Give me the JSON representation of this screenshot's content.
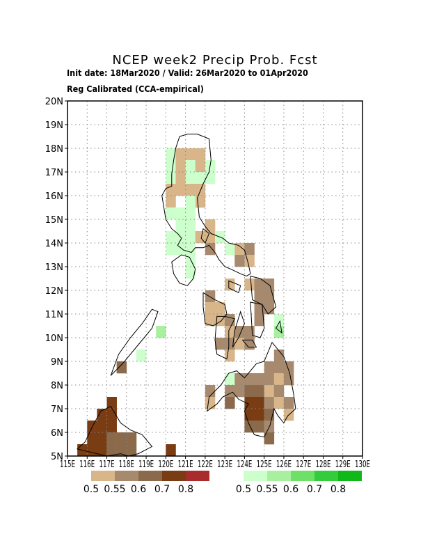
{
  "title": "NCEP week2 Precip Prob. Fcst",
  "subtitle_dates": "Init date: 18Mar2020 / Valid: 26Mar2020 to 01Apr2020",
  "subtitle_method": "Reg Calibrated (CCA-empirical)",
  "map": {
    "lon_range": [
      115,
      130
    ],
    "lat_range": [
      5,
      20
    ],
    "lon_tick_labels": [
      "115E",
      "116E",
      "117E",
      "118E",
      "119E",
      "120E",
      "121E",
      "122E",
      "123E",
      "124E",
      "125E",
      "126E",
      "127E",
      "128E",
      "129E",
      "130E"
    ],
    "lat_tick_labels": [
      "5N",
      "6N",
      "7N",
      "8N",
      "9N",
      "10N",
      "11N",
      "12N",
      "13N",
      "14N",
      "15N",
      "16N",
      "17N",
      "18N",
      "19N",
      "20N"
    ],
    "grid": "dotted",
    "cell_size_deg": 0.5
  },
  "legend": {
    "dry": {
      "colors": [
        "#d8b68a",
        "#a78a6e",
        "#8a6a4a",
        "#7a3c12",
        "#a82c2c"
      ],
      "labels": [
        "0.5",
        "0.55",
        "0.6",
        "0.7",
        "0.8"
      ]
    },
    "wet": {
      "colors": [
        "#ccffcc",
        "#a8f0a0",
        "#6ee068",
        "#34cc3c",
        "#10b81a"
      ],
      "labels": [
        "0.5",
        "0.55",
        "0.6",
        "0.7",
        "0.8"
      ]
    }
  },
  "cells": [
    {
      "lon": 120.25,
      "lat": 17.75,
      "cat": "wet1"
    },
    {
      "lon": 120.25,
      "lat": 17.25,
      "cat": "wet1"
    },
    {
      "lon": 120.25,
      "lat": 16.75,
      "cat": "wet1"
    },
    {
      "lon": 120.25,
      "lat": 16.25,
      "cat": "dry1"
    },
    {
      "lon": 120.25,
      "lat": 15.75,
      "cat": "dry1"
    },
    {
      "lon": 120.75,
      "lat": 17.75,
      "cat": "dry1"
    },
    {
      "lon": 120.75,
      "lat": 17.25,
      "cat": "dry1"
    },
    {
      "lon": 120.75,
      "lat": 16.75,
      "cat": "dry1"
    },
    {
      "lon": 120.75,
      "lat": 16.25,
      "cat": "dry1"
    },
    {
      "lon": 121.25,
      "lat": 17.75,
      "cat": "dry1"
    },
    {
      "lon": 121.25,
      "lat": 17.25,
      "cat": "wet1"
    },
    {
      "lon": 121.25,
      "lat": 16.75,
      "cat": "wet1"
    },
    {
      "lon": 121.25,
      "lat": 16.25,
      "cat": "dry1"
    },
    {
      "lon": 121.75,
      "lat": 17.75,
      "cat": "dry1"
    },
    {
      "lon": 121.75,
      "lat": 17.25,
      "cat": "dry1"
    },
    {
      "lon": 121.75,
      "lat": 16.75,
      "cat": "wet1"
    },
    {
      "lon": 121.75,
      "lat": 16.25,
      "cat": "dry1"
    },
    {
      "lon": 121.75,
      "lat": 15.75,
      "cat": "dry1"
    },
    {
      "lon": 122.25,
      "lat": 17.25,
      "cat": "wet1"
    },
    {
      "lon": 122.25,
      "lat": 16.75,
      "cat": "wet1"
    },
    {
      "lon": 121.25,
      "lat": 15.75,
      "cat": "wet1"
    },
    {
      "lon": 120.25,
      "lat": 15.25,
      "cat": "wet1"
    },
    {
      "lon": 120.75,
      "lat": 15.25,
      "cat": "wet1"
    },
    {
      "lon": 121.25,
      "lat": 15.25,
      "cat": "wet1"
    },
    {
      "lon": 120.75,
      "lat": 14.75,
      "cat": "wet1"
    },
    {
      "lon": 121.25,
      "lat": 14.75,
      "cat": "wet1"
    },
    {
      "lon": 120.25,
      "lat": 14.25,
      "cat": "wet1"
    },
    {
      "lon": 120.75,
      "lat": 14.25,
      "cat": "wet1"
    },
    {
      "lon": 121.25,
      "lat": 14.25,
      "cat": "wet1"
    },
    {
      "lon": 121.75,
      "lat": 14.25,
      "cat": "dry1"
    },
    {
      "lon": 122.25,
      "lat": 14.75,
      "cat": "dry1"
    },
    {
      "lon": 122.25,
      "lat": 14.25,
      "cat": "dry1"
    },
    {
      "lon": 122.75,
      "lat": 14.25,
      "cat": "wet1"
    },
    {
      "lon": 120.25,
      "lat": 13.75,
      "cat": "wet1"
    },
    {
      "lon": 120.75,
      "lat": 13.75,
      "cat": "wet1"
    },
    {
      "lon": 121.25,
      "lat": 13.75,
      "cat": "wet1"
    },
    {
      "lon": 121.25,
      "lat": 13.25,
      "cat": "wet1"
    },
    {
      "lon": 121.25,
      "lat": 12.75,
      "cat": "wet1"
    },
    {
      "lon": 122.25,
      "lat": 13.75,
      "cat": "dry2"
    },
    {
      "lon": 123.25,
      "lat": 13.75,
      "cat": "wet1"
    },
    {
      "lon": 123.75,
      "lat": 13.75,
      "cat": "dry1"
    },
    {
      "lon": 123.75,
      "lat": 13.25,
      "cat": "dry2"
    },
    {
      "lon": 124.25,
      "lat": 13.75,
      "cat": "dry2"
    },
    {
      "lon": 124.25,
      "lat": 13.25,
      "cat": "dry1"
    },
    {
      "lon": 123.25,
      "lat": 12.25,
      "cat": "dry1"
    },
    {
      "lon": 124.25,
      "lat": 12.25,
      "cat": "dry1"
    },
    {
      "lon": 124.75,
      "lat": 12.25,
      "cat": "dry2"
    },
    {
      "lon": 125.25,
      "lat": 12.25,
      "cat": "dry2"
    },
    {
      "lon": 124.75,
      "lat": 11.75,
      "cat": "dry2"
    },
    {
      "lon": 125.25,
      "lat": 11.75,
      "cat": "dry2"
    },
    {
      "lon": 124.75,
      "lat": 11.25,
      "cat": "dry2"
    },
    {
      "lon": 125.25,
      "lat": 11.25,
      "cat": "dry2"
    },
    {
      "lon": 125.75,
      "lat": 10.75,
      "cat": "wet1"
    },
    {
      "lon": 125.75,
      "lat": 10.25,
      "cat": "wet2"
    },
    {
      "lon": 124.75,
      "lat": 10.75,
      "cat": "dry2"
    },
    {
      "lon": 124.25,
      "lat": 10.25,
      "cat": "dry2"
    },
    {
      "lon": 122.25,
      "lat": 11.75,
      "cat": "dry2"
    },
    {
      "lon": 122.25,
      "lat": 11.25,
      "cat": "dry1"
    },
    {
      "lon": 122.75,
      "lat": 11.25,
      "cat": "dry1"
    },
    {
      "lon": 122.25,
      "lat": 10.75,
      "cat": "dry1"
    },
    {
      "lon": 122.75,
      "lat": 10.75,
      "cat": "dry1"
    },
    {
      "lon": 123.25,
      "lat": 10.75,
      "cat": "dry2"
    },
    {
      "lon": 123.25,
      "lat": 10.25,
      "cat": "dry1"
    },
    {
      "lon": 123.75,
      "lat": 10.25,
      "cat": "dry2"
    },
    {
      "lon": 122.75,
      "lat": 9.75,
      "cat": "dry2"
    },
    {
      "lon": 123.25,
      "lat": 9.75,
      "cat": "dry2"
    },
    {
      "lon": 123.75,
      "lat": 9.75,
      "cat": "dry1"
    },
    {
      "lon": 123.25,
      "lat": 9.25,
      "cat": "dry1"
    },
    {
      "lon": 124.25,
      "lat": 9.75,
      "cat": "dry2"
    },
    {
      "lon": 125.75,
      "lat": 9.25,
      "cat": "dry2"
    },
    {
      "lon": 125.25,
      "lat": 8.75,
      "cat": "dry2"
    },
    {
      "lon": 125.75,
      "lat": 8.75,
      "cat": "dry2"
    },
    {
      "lon": 126.25,
      "lat": 8.75,
      "cat": "dry2"
    },
    {
      "lon": 125.25,
      "lat": 8.25,
      "cat": "dry2"
    },
    {
      "lon": 125.75,
      "lat": 8.25,
      "cat": "dry1"
    },
    {
      "lon": 126.25,
      "lat": 8.25,
      "cat": "dry2"
    },
    {
      "lon": 123.25,
      "lat": 8.25,
      "cat": "wet1"
    },
    {
      "lon": 123.75,
      "lat": 8.25,
      "cat": "dry2"
    },
    {
      "lon": 124.25,
      "lat": 8.25,
      "cat": "dry2"
    },
    {
      "lon": 124.75,
      "lat": 8.25,
      "cat": "dry2"
    },
    {
      "lon": 122.25,
      "lat": 7.75,
      "cat": "dry2"
    },
    {
      "lon": 123.25,
      "lat": 7.75,
      "cat": "dry2"
    },
    {
      "lon": 123.75,
      "lat": 7.75,
      "cat": "dry2"
    },
    {
      "lon": 124.25,
      "lat": 7.75,
      "cat": "dry3"
    },
    {
      "lon": 124.75,
      "lat": 7.75,
      "cat": "dry3"
    },
    {
      "lon": 125.25,
      "lat": 7.75,
      "cat": "dry1"
    },
    {
      "lon": 125.75,
      "lat": 7.75,
      "cat": "dry2"
    },
    {
      "lon": 122.25,
      "lat": 7.25,
      "cat": "dry1"
    },
    {
      "lon": 123.25,
      "lat": 7.25,
      "cat": "dry3"
    },
    {
      "lon": 124.25,
      "lat": 7.25,
      "cat": "dry4"
    },
    {
      "lon": 124.75,
      "lat": 7.25,
      "cat": "dry4"
    },
    {
      "lon": 125.25,
      "lat": 7.25,
      "cat": "dry2"
    },
    {
      "lon": 125.75,
      "lat": 7.25,
      "cat": "dry1"
    },
    {
      "lon": 126.25,
      "lat": 7.25,
      "cat": "dry2"
    },
    {
      "lon": 124.25,
      "lat": 6.75,
      "cat": "dry4"
    },
    {
      "lon": 124.75,
      "lat": 6.75,
      "cat": "dry4"
    },
    {
      "lon": 125.25,
      "lat": 6.75,
      "cat": "dry3"
    },
    {
      "lon": 126.25,
      "lat": 6.75,
      "cat": "dry1"
    },
    {
      "lon": 124.25,
      "lat": 6.25,
      "cat": "dry3"
    },
    {
      "lon": 124.75,
      "lat": 6.25,
      "cat": "dry3"
    },
    {
      "lon": 125.25,
      "lat": 6.25,
      "cat": "dry2"
    },
    {
      "lon": 125.25,
      "lat": 5.75,
      "cat": "dry3"
    },
    {
      "lon": 119.75,
      "lat": 10.25,
      "cat": "wet2"
    },
    {
      "lon": 118.75,
      "lat": 9.25,
      "cat": "wet1"
    },
    {
      "lon": 117.75,
      "lat": 8.75,
      "cat": "dry3"
    },
    {
      "lon": 117.25,
      "lat": 7.25,
      "cat": "dry4"
    },
    {
      "lon": 116.75,
      "lat": 6.75,
      "cat": "dry4"
    },
    {
      "lon": 117.25,
      "lat": 6.75,
      "cat": "dry4"
    },
    {
      "lon": 116.25,
      "lat": 6.25,
      "cat": "dry4"
    },
    {
      "lon": 116.75,
      "lat": 6.25,
      "cat": "dry4"
    },
    {
      "lon": 117.25,
      "lat": 6.25,
      "cat": "dry4"
    },
    {
      "lon": 116.25,
      "lat": 5.75,
      "cat": "dry4"
    },
    {
      "lon": 116.75,
      "lat": 5.75,
      "cat": "dry4"
    },
    {
      "lon": 117.25,
      "lat": 5.75,
      "cat": "dry3"
    },
    {
      "lon": 117.75,
      "lat": 5.75,
      "cat": "dry3"
    },
    {
      "lon": 118.25,
      "lat": 5.75,
      "cat": "dry3"
    },
    {
      "lon": 115.75,
      "lat": 5.25,
      "cat": "dry4"
    },
    {
      "lon": 116.25,
      "lat": 5.25,
      "cat": "dry4"
    },
    {
      "lon": 116.75,
      "lat": 5.25,
      "cat": "dry4"
    },
    {
      "lon": 117.25,
      "lat": 5.25,
      "cat": "dry3"
    },
    {
      "lon": 117.75,
      "lat": 5.25,
      "cat": "dry3"
    },
    {
      "lon": 118.25,
      "lat": 5.25,
      "cat": "dry3"
    },
    {
      "lon": 120.25,
      "lat": 5.25,
      "cat": "dry4"
    }
  ]
}
